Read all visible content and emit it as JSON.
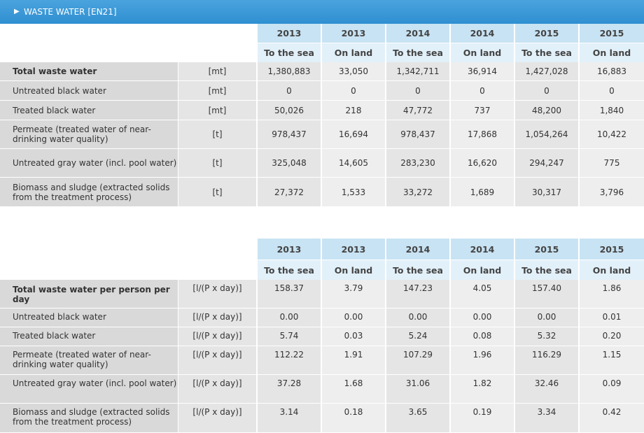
{
  "header": {
    "title": "WASTE WATER [EN21]",
    "arrow": "▶"
  },
  "years": [
    "2013",
    "2013",
    "2014",
    "2014",
    "2015",
    "2015"
  ],
  "dest": [
    "To the sea",
    "On land",
    "To the sea",
    "On land",
    "To the sea",
    "On land"
  ],
  "table1": {
    "rows": [
      {
        "label": "Total waste water",
        "unit": "[mt]",
        "values": [
          "1,380,883",
          "33,050",
          "1,342,711",
          "36,914",
          "1,427,028",
          "16,883"
        ]
      },
      {
        "label": "Untreated black water",
        "unit": "[mt]",
        "values": [
          "0",
          "0",
          "0",
          "0",
          "0",
          "0"
        ]
      },
      {
        "label": "Treated black water",
        "unit": "[mt]",
        "values": [
          "50,026",
          "218",
          "47,772",
          "737",
          "48,200",
          "1,840"
        ]
      },
      {
        "label": "Permeate (treated water of near-drinking water quality)",
        "unit": "[t]",
        "values": [
          "978,437",
          "16,694",
          "978,437",
          "17,868",
          "1,054,264",
          "10,422"
        ]
      },
      {
        "label": "Untreated gray water (incl. pool water)",
        "unit": "[t]",
        "values": [
          "325,048",
          "14,605",
          "283,230",
          "16,620",
          "294,247",
          "775"
        ]
      },
      {
        "label": "Biomass and sludge (extracted solids from the treatment process)",
        "unit": "[t]",
        "values": [
          "27,372",
          "1,533",
          "33,272",
          "1,689",
          "30,317",
          "3,796"
        ]
      }
    ]
  },
  "table2": {
    "rows": [
      {
        "label": "Total waste water per person per day",
        "unit": "[l/(P x day)]",
        "values": [
          "158.37",
          "3.79",
          "147.23",
          "4.05",
          "157.40",
          "1.86"
        ]
      },
      {
        "label": "Untreated black water",
        "unit": "[l/(P x day)]",
        "values": [
          "0.00",
          "0.00",
          "0.00",
          "0.00",
          "0.00",
          "0.01"
        ]
      },
      {
        "label": "Treated black water",
        "unit": "[l/(P x day)]",
        "values": [
          "5.74",
          "0.03",
          "5.24",
          "0.08",
          "5.32",
          "0.20"
        ]
      },
      {
        "label": "Permeate (treated water of near-drinking water quality)",
        "unit": "[l/(P x day)]",
        "values": [
          "112.22",
          "1.91",
          "107.29",
          "1.96",
          "116.29",
          "1.15"
        ]
      },
      {
        "label": "Untreated gray water (incl. pool water)",
        "unit": "[l/(P x day)]",
        "values": [
          "37.28",
          "1.68",
          "31.06",
          "1.82",
          "32.46",
          "0.09"
        ]
      },
      {
        "label": "Biomass and sludge (extracted solids from the treatment process)",
        "unit": "[l/(P x day)]",
        "values": [
          "3.14",
          "0.18",
          "3.65",
          "0.19",
          "3.34",
          "0.42"
        ]
      }
    ]
  }
}
